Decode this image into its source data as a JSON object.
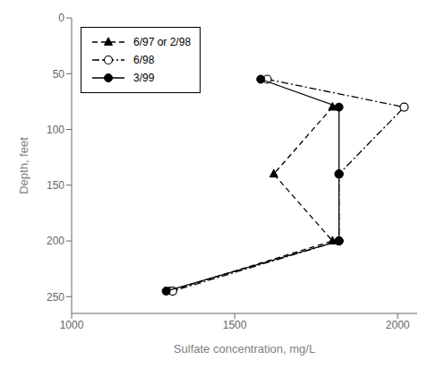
{
  "chart_data": {
    "type": "line",
    "xlabel": "Sulfate concentration, mg/L",
    "ylabel": "Depth, feet",
    "xlim": [
      1000,
      2060
    ],
    "ylim": [
      265,
      0
    ],
    "xticks": [
      1000,
      1500,
      2000
    ],
    "yticks": [
      0,
      50,
      100,
      150,
      200,
      250
    ],
    "grid": false,
    "legend": "upper left",
    "series": [
      {
        "name": "6/97 or 2/98",
        "color": "#000000",
        "marker": "triangle",
        "line_style": "dashed",
        "x": [
          1800,
          1620,
          1800,
          1300
        ],
        "values": [
          80,
          140,
          200,
          245
        ]
      },
      {
        "name": "6/98",
        "color": "#000000",
        "marker": "open_circle",
        "line_style": "dashdot",
        "x": [
          1600,
          2020,
          1820,
          1820,
          1310
        ],
        "values": [
          55,
          80,
          140,
          200,
          245
        ]
      },
      {
        "name": "3/99",
        "color": "#000000",
        "marker": "circle",
        "line_style": "solid",
        "x": [
          1580,
          1820,
          1820,
          1820,
          1290
        ],
        "values": [
          55,
          80,
          140,
          200,
          245
        ]
      }
    ]
  }
}
